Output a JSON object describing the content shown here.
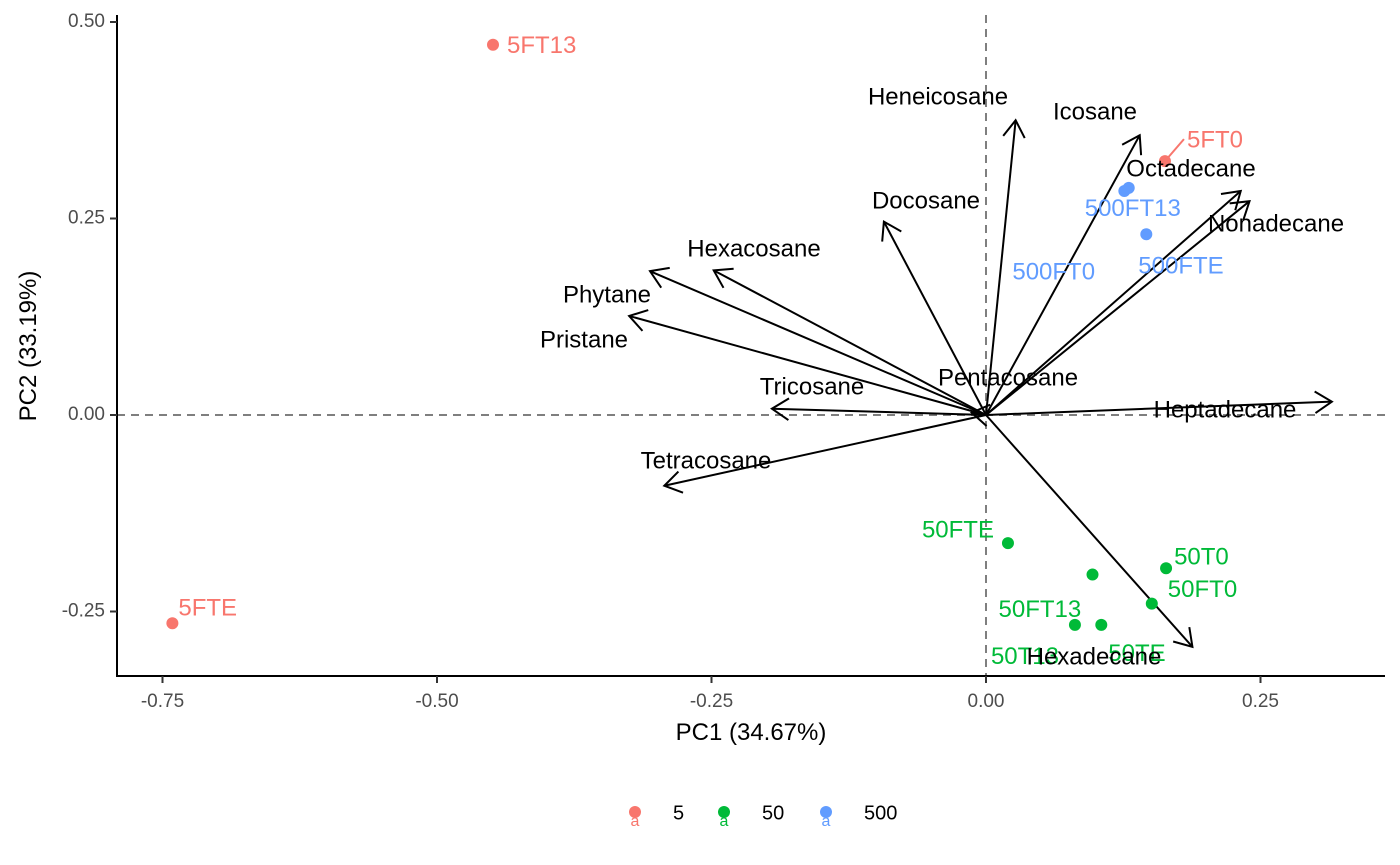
{
  "chart_data": {
    "type": "scatter",
    "subtype": "pca-biplot",
    "xlabel": "PC1 (34.67%)",
    "ylabel": "PC2 (33.19%)",
    "xlim": [
      -0.8,
      0.365
    ],
    "ylim": [
      -0.33,
      0.51
    ],
    "x_ticks": [
      -0.75,
      -0.5,
      -0.25,
      0.0,
      0.25
    ],
    "x_tick_labels": [
      "-0.75",
      "-0.50",
      "-0.25",
      "0.00",
      "0.25"
    ],
    "y_ticks": [
      -0.25,
      0.0,
      0.25,
      0.5
    ],
    "y_tick_labels": [
      "-0.25",
      "0.00",
      "0.25",
      "0.50"
    ],
    "grid": false,
    "reference_lines": {
      "x": 0,
      "y": 0,
      "style": "dashed"
    },
    "legend": {
      "position": "bottom",
      "entries": [
        {
          "label": "5",
          "color": "#F8766D"
        },
        {
          "label": "50",
          "color": "#00BA38"
        },
        {
          "label": "500",
          "color": "#619CFF"
        }
      ],
      "key_glyph": "a"
    },
    "points": [
      {
        "label": "5FT13",
        "group": "5",
        "x": -0.449,
        "y": 0.471
      },
      {
        "label": "5FT0",
        "group": "5",
        "x": 0.163,
        "y": 0.323
      },
      {
        "label": "5FTE",
        "group": "5",
        "x": -0.741,
        "y": -0.265
      },
      {
        "label": "500FT13",
        "group": "500",
        "x": 0.13,
        "y": 0.289
      },
      {
        "label": "500FT0",
        "group": "500",
        "x": 0.126,
        "y": 0.285
      },
      {
        "label": "500FTE",
        "group": "500",
        "x": 0.146,
        "y": 0.23
      },
      {
        "label": "50FTE",
        "group": "50",
        "x": 0.02,
        "y": -0.163
      },
      {
        "label": "50T0",
        "group": "50",
        "x": 0.164,
        "y": -0.195
      },
      {
        "label": "50FT0",
        "group": "50",
        "x": 0.151,
        "y": -0.24
      },
      {
        "label": "50FT13",
        "group": "50",
        "x": 0.097,
        "y": -0.203
      },
      {
        "label": "50T13",
        "group": "50",
        "x": 0.081,
        "y": -0.267
      },
      {
        "label": "50TE",
        "group": "50",
        "x": 0.105,
        "y": -0.267
      }
    ],
    "loadings": [
      {
        "name": "Heneicosane",
        "x": 0.027,
        "y": 0.375
      },
      {
        "name": "Icosane",
        "x": 0.14,
        "y": 0.356
      },
      {
        "name": "Octadecane",
        "x": 0.232,
        "y": 0.285
      },
      {
        "name": "Nonadecane",
        "x": 0.24,
        "y": 0.272
      },
      {
        "name": "Docosane",
        "x": -0.093,
        "y": 0.246
      },
      {
        "name": "Hexacosane",
        "x": -0.248,
        "y": 0.184
      },
      {
        "name": "Phytane",
        "x": -0.306,
        "y": 0.183
      },
      {
        "name": "Pristane",
        "x": -0.325,
        "y": 0.126
      },
      {
        "name": "Tricosane",
        "x": -0.195,
        "y": 0.008
      },
      {
        "name": "Pentacosane",
        "x": -0.013,
        "y": 0.003
      },
      {
        "name": "Heptadecane",
        "x": 0.315,
        "y": 0.017
      },
      {
        "name": "Tetracosane",
        "x": -0.293,
        "y": -0.09
      },
      {
        "name": "Hexadecane",
        "x": 0.188,
        "y": -0.295
      }
    ]
  }
}
